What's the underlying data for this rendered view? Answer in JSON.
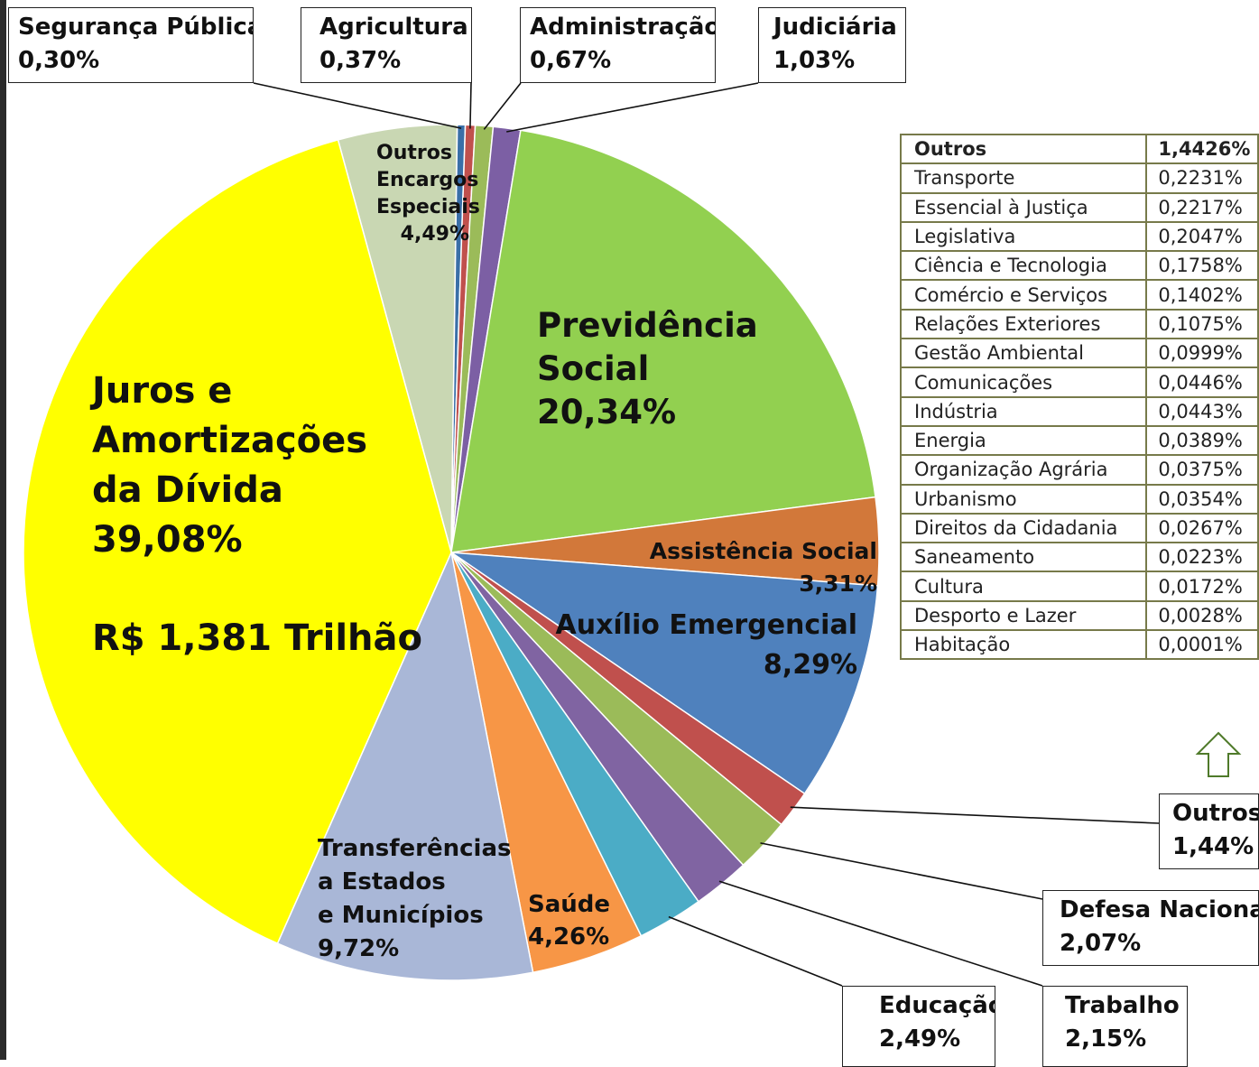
{
  "chart_data": {
    "type": "pie",
    "total_label": "R$ 1,381 Trilhão",
    "slices": [
      {
        "name": "Outros Encargos Especiais",
        "value": 4.49,
        "label": "4,49%",
        "color": "#c9d7b3"
      },
      {
        "name": "Segurança Pública",
        "value": 0.3,
        "label": "0,30%",
        "color": "#3a6fa8"
      },
      {
        "name": "Agricultura",
        "value": 0.37,
        "label": "0,37%",
        "color": "#c0504d"
      },
      {
        "name": "Administração",
        "value": 0.67,
        "label": "0,67%",
        "color": "#9bbb59"
      },
      {
        "name": "Judiciária",
        "value": 1.03,
        "label": "1,03%",
        "color": "#7c5fa4"
      },
      {
        "name": "Previdência Social",
        "value": 20.34,
        "label": "20,34%",
        "color": "#92d050"
      },
      {
        "name": "Assistência Social",
        "value": 3.31,
        "label": "3,31%",
        "color": "#d2783a"
      },
      {
        "name": "Auxílio Emergencial",
        "value": 8.29,
        "label": "8,29%",
        "color": "#4f81bd"
      },
      {
        "name": "Outros",
        "value": 1.44,
        "label": "1,44%",
        "color": "#c0504d"
      },
      {
        "name": "Defesa Nacional",
        "value": 2.07,
        "label": "2,07%",
        "color": "#9bbb59"
      },
      {
        "name": "Trabalho",
        "value": 2.15,
        "label": "2,15%",
        "color": "#8064a2"
      },
      {
        "name": "Educação",
        "value": 2.49,
        "label": "2,49%",
        "color": "#4bacc6"
      },
      {
        "name": "Saúde",
        "value": 4.26,
        "label": "4,26%",
        "color": "#f79646"
      },
      {
        "name": "Transferências a Estados e Municípios",
        "value": 9.72,
        "label": "9,72%",
        "color": "#a9b7d7"
      },
      {
        "name": "Juros e Amortizações da Dívida",
        "value": 39.08,
        "label": "39,08%",
        "color": "#ffff00"
      }
    ],
    "others_breakdown": {
      "header": {
        "name": "Outros",
        "value": "1,4426%"
      },
      "rows": [
        {
          "name": "Transporte",
          "value": "0,2231%"
        },
        {
          "name": "Essencial à Justiça",
          "value": "0,2217%"
        },
        {
          "name": "Legislativa",
          "value": "0,2047%"
        },
        {
          "name": "Ciência e Tecnologia",
          "value": "0,1758%"
        },
        {
          "name": "Comércio e Serviços",
          "value": "0,1402%"
        },
        {
          "name": "Relações Exteriores",
          "value": "0,1075%"
        },
        {
          "name": "Gestão Ambiental",
          "value": "0,0999%"
        },
        {
          "name": "Comunicações",
          "value": "0,0446%"
        },
        {
          "name": "Indústria",
          "value": "0,0443%"
        },
        {
          "name": "Energia",
          "value": "0,0389%"
        },
        {
          "name": "Organização Agrária",
          "value": "0,0375%"
        },
        {
          "name": "Urbanismo",
          "value": "0,0354%"
        },
        {
          "name": "Direitos da Cidadania",
          "value": "0,0267%"
        },
        {
          "name": "Saneamento",
          "value": "0,0223%"
        },
        {
          "name": "Cultura",
          "value": "0,0172%"
        },
        {
          "name": "Desporto e Lazer",
          "value": "0,0028%"
        },
        {
          "name": "Habitação",
          "value": "0,0001%"
        }
      ]
    }
  },
  "labels": {
    "juros_line1": "Juros e",
    "juros_line2": "Amortizações",
    "juros_line3": "da Dívida",
    "juros_pct": "39,08%",
    "total": "R$ 1,381 Trilhão",
    "prev_line1": "Previdência",
    "prev_line2": "Social",
    "prev_pct": "20,34%",
    "outros_enc_line1": "Outros",
    "outros_enc_line2": "Encargos",
    "outros_enc_line3": "Especiais",
    "outros_enc_pct": "4,49%",
    "assist_name": "Assistência Social",
    "assist_pct": "3,31%",
    "auxilio_name": "Auxílio Emergencial",
    "auxilio_pct": "8,29%",
    "transf_line1": "Transferências",
    "transf_line2": "a Estados",
    "transf_line3": "e Municípios",
    "transf_pct": "9,72%",
    "saude_name": "Saúde",
    "saude_pct": "4,26%"
  },
  "callouts": {
    "seguranca": {
      "name": "Segurança Pública",
      "pct": "0,30%"
    },
    "agricultura": {
      "name": "Agricultura",
      "pct": "0,37%"
    },
    "administracao": {
      "name": "Administração",
      "pct": "0,67%"
    },
    "judiciaria": {
      "name": "Judiciária",
      "pct": "1,03%"
    },
    "outros": {
      "name": "Outros",
      "pct": "1,44%"
    },
    "defesa": {
      "name": "Defesa Nacional",
      "pct": "2,07%"
    },
    "educacao": {
      "name": "Educação",
      "pct": "2,49%"
    },
    "trabalho": {
      "name": "Trabalho",
      "pct": "2,15%"
    }
  },
  "colors": {
    "total_text": "#ee0000",
    "table_border": "#777a4a",
    "up_arrow": "#4f7a2a"
  },
  "icons": {
    "up_arrow": "up-arrow-icon"
  }
}
